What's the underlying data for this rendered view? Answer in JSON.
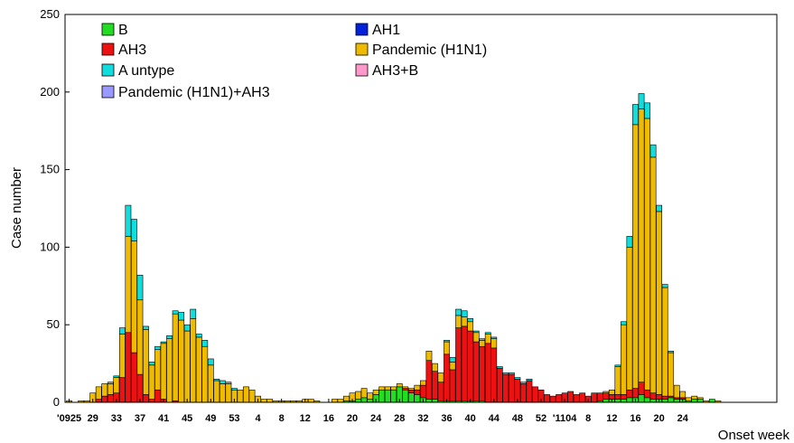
{
  "chart_data": {
    "type": "bar",
    "stacked": true,
    "xlabel": "Onset week",
    "ylabel": "Case number",
    "ylim": [
      0,
      250
    ],
    "yticks": [
      0,
      50,
      100,
      150,
      200,
      250
    ],
    "x_tick_labels": [
      "'0925",
      "29",
      "33",
      "37",
      "41",
      "45",
      "49",
      "53",
      "4",
      "8",
      "12",
      "16",
      "20",
      "24",
      "28",
      "32",
      "36",
      "40",
      "44",
      "48",
      "52",
      "'1104",
      "8",
      "12",
      "16",
      "20",
      "24"
    ],
    "x_tick_every": 4,
    "legend_position": "top-left",
    "grid": false,
    "series": [
      {
        "name": "B",
        "color": "#22dd22",
        "values": [
          0,
          0,
          0,
          0,
          0,
          0,
          0,
          0,
          0,
          0,
          0,
          0,
          0,
          0,
          0,
          0,
          0,
          0,
          0,
          0,
          0,
          0,
          0,
          0,
          0,
          0,
          0,
          0,
          0,
          0,
          0,
          0,
          0,
          0,
          0,
          0,
          0,
          0,
          0,
          0,
          0,
          0,
          0,
          0,
          0,
          0,
          0,
          1,
          1,
          2,
          3,
          2,
          5,
          8,
          8,
          8,
          10,
          8,
          6,
          5,
          3,
          2,
          2,
          1,
          1,
          1,
          1,
          1,
          1,
          1,
          1,
          0,
          0,
          0,
          0,
          0,
          0,
          0,
          0,
          0,
          0,
          0,
          0,
          0,
          0,
          0,
          0,
          0,
          0,
          0,
          1,
          2,
          2,
          2,
          2,
          3,
          3,
          5,
          3,
          2,
          2,
          2,
          3,
          2,
          2,
          1,
          2,
          2,
          0,
          2,
          0,
          0,
          0,
          0,
          0,
          0,
          0,
          0,
          0,
          0,
          0,
          0
        ]
      },
      {
        "name": "AH1",
        "color": "#0022dd",
        "values": [
          0,
          0,
          0,
          0,
          0,
          0,
          0,
          0,
          0,
          0,
          0,
          0,
          0,
          0,
          0,
          0,
          0,
          0,
          0,
          0,
          0,
          0,
          0,
          0,
          0,
          0,
          0,
          0,
          0,
          0,
          0,
          0,
          0,
          0,
          0,
          0,
          0,
          0,
          0,
          0,
          0,
          0,
          0,
          0,
          0,
          0,
          0,
          0,
          0,
          0,
          0,
          0,
          0,
          0,
          0,
          0,
          0,
          0,
          0,
          0,
          0,
          0,
          0,
          0,
          0,
          0,
          0,
          0,
          0,
          0,
          0,
          0,
          0,
          0,
          0,
          0,
          0,
          0,
          0,
          0,
          0,
          0,
          0,
          0,
          0,
          0,
          0,
          0,
          0,
          0,
          0,
          0,
          0,
          0,
          0,
          0,
          0,
          0,
          0,
          0,
          0,
          0,
          0,
          0,
          0,
          0,
          0,
          0,
          0,
          0,
          0,
          0,
          0,
          0,
          0,
          0,
          0,
          0,
          0,
          0,
          0,
          0
        ]
      },
      {
        "name": "AH3",
        "color": "#ee1111",
        "values": [
          0,
          0,
          0,
          0,
          0,
          2,
          4,
          5,
          6,
          16,
          45,
          32,
          18,
          5,
          2,
          8,
          2,
          0,
          1,
          0,
          0,
          0,
          0,
          0,
          0,
          0,
          0,
          0,
          0,
          0,
          0,
          0,
          0,
          0,
          0,
          0,
          0,
          0,
          0,
          0,
          0,
          0,
          0,
          0,
          0,
          0,
          0,
          0,
          0,
          0,
          0,
          0,
          0,
          0,
          0,
          0,
          0,
          1,
          2,
          3,
          8,
          25,
          18,
          12,
          30,
          20,
          47,
          48,
          45,
          38,
          35,
          38,
          35,
          22,
          18,
          18,
          15,
          12,
          14,
          10,
          8,
          5,
          4,
          5,
          6,
          7,
          5,
          6,
          4,
          6,
          5,
          4,
          3,
          3,
          3,
          5,
          6,
          8,
          5,
          4,
          3,
          2,
          1,
          1,
          1,
          0,
          0,
          0,
          0,
          0,
          0,
          0,
          0,
          0,
          0,
          0,
          0,
          0,
          0,
          0,
          0,
          0
        ]
      },
      {
        "name": "Pandemic (H1N1)",
        "color": "#eebb00",
        "values": [
          1,
          0,
          1,
          1,
          6,
          8,
          8,
          7,
          10,
          28,
          62,
          72,
          48,
          42,
          22,
          26,
          36,
          41,
          56,
          53,
          46,
          54,
          42,
          36,
          24,
          14,
          12,
          12,
          8,
          8,
          10,
          8,
          4,
          2,
          2,
          1,
          1,
          1,
          1,
          1,
          2,
          2,
          1,
          0,
          0,
          2,
          2,
          3,
          5,
          5,
          6,
          4,
          3,
          2,
          2,
          2,
          2,
          1,
          1,
          3,
          3,
          6,
          5,
          6,
          8,
          5,
          8,
          6,
          6,
          6,
          4,
          6,
          6,
          0,
          0,
          0,
          0,
          0,
          0,
          0,
          0,
          0,
          0,
          0,
          0,
          0,
          0,
          0,
          0,
          0,
          0,
          1,
          3,
          18,
          45,
          92,
          170,
          176,
          175,
          152,
          118,
          70,
          28,
          8,
          4,
          2,
          2,
          1,
          1,
          0,
          1,
          0,
          0,
          0,
          0,
          0,
          0,
          0,
          0,
          0,
          0,
          0
        ]
      },
      {
        "name": "A untype",
        "color": "#11dddd",
        "values": [
          0,
          0,
          0,
          0,
          0,
          0,
          0,
          1,
          1,
          4,
          20,
          14,
          16,
          2,
          2,
          2,
          1,
          2,
          2,
          5,
          4,
          6,
          2,
          4,
          4,
          1,
          2,
          1,
          1,
          0,
          0,
          0,
          0,
          0,
          0,
          0,
          0,
          0,
          0,
          0,
          0,
          0,
          0,
          0,
          0,
          0,
          0,
          0,
          0,
          0,
          0,
          0,
          0,
          0,
          0,
          0,
          0,
          0,
          0,
          0,
          0,
          0,
          0,
          0,
          1,
          3,
          4,
          4,
          2,
          1,
          1,
          1,
          1,
          1,
          1,
          1,
          1,
          1,
          1,
          0,
          0,
          0,
          0,
          0,
          0,
          0,
          0,
          0,
          0,
          0,
          0,
          0,
          0,
          1,
          2,
          7,
          13,
          10,
          10,
          8,
          4,
          2,
          1,
          0,
          0,
          0,
          0,
          0,
          0,
          0,
          0,
          0,
          0,
          0,
          0,
          0,
          0,
          0,
          0,
          0,
          0,
          0
        ]
      },
      {
        "name": "AH3+B",
        "color": "#ff99cc",
        "values": [
          0,
          0,
          0,
          0,
          0,
          0,
          0,
          0,
          0,
          0,
          0,
          0,
          0,
          0,
          0,
          0,
          0,
          0,
          0,
          0,
          0,
          0,
          0,
          0,
          0,
          0,
          0,
          0,
          0,
          0,
          0,
          0,
          0,
          0,
          0,
          0,
          0,
          0,
          0,
          0,
          0,
          0,
          0,
          0,
          0,
          0,
          0,
          0,
          0,
          0,
          0,
          0,
          0,
          0,
          0,
          0,
          0,
          0,
          0,
          0,
          0,
          0,
          0,
          0,
          0,
          0,
          0,
          0,
          0,
          0,
          0,
          0,
          0,
          0,
          0,
          0,
          0,
          0,
          0,
          0,
          0,
          0,
          0,
          0,
          0,
          0,
          0,
          0,
          0,
          0,
          0,
          0,
          0,
          0,
          0,
          0,
          0,
          0,
          0,
          0,
          0,
          0,
          0,
          0,
          0,
          0,
          0,
          0,
          0,
          0,
          0,
          0,
          0,
          0,
          0,
          0,
          0,
          0,
          0,
          0,
          0,
          0
        ]
      },
      {
        "name": "Pandemic (H1N1)+AH3",
        "color": "#9999ff",
        "values": [
          0,
          0,
          0,
          0,
          0,
          0,
          0,
          0,
          0,
          0,
          0,
          0,
          0,
          0,
          0,
          0,
          0,
          0,
          0,
          0,
          0,
          0,
          0,
          0,
          0,
          0,
          0,
          0,
          0,
          0,
          0,
          0,
          0,
          0,
          0,
          0,
          0,
          0,
          0,
          0,
          0,
          0,
          0,
          0,
          0,
          0,
          0,
          0,
          0,
          0,
          0,
          0,
          0,
          0,
          0,
          0,
          0,
          0,
          0,
          0,
          0,
          0,
          0,
          0,
          0,
          0,
          0,
          0,
          0,
          0,
          0,
          0,
          0,
          0,
          0,
          0,
          0,
          0,
          0,
          0,
          0,
          0,
          0,
          0,
          0,
          0,
          0,
          0,
          0,
          0,
          0,
          0,
          0,
          0,
          0,
          0,
          0,
          0,
          0,
          0,
          0,
          0,
          0,
          0,
          0,
          0,
          0,
          0,
          0,
          0,
          0,
          0,
          0,
          0,
          0,
          0,
          0,
          0,
          0,
          0,
          0,
          0
        ]
      }
    ]
  }
}
